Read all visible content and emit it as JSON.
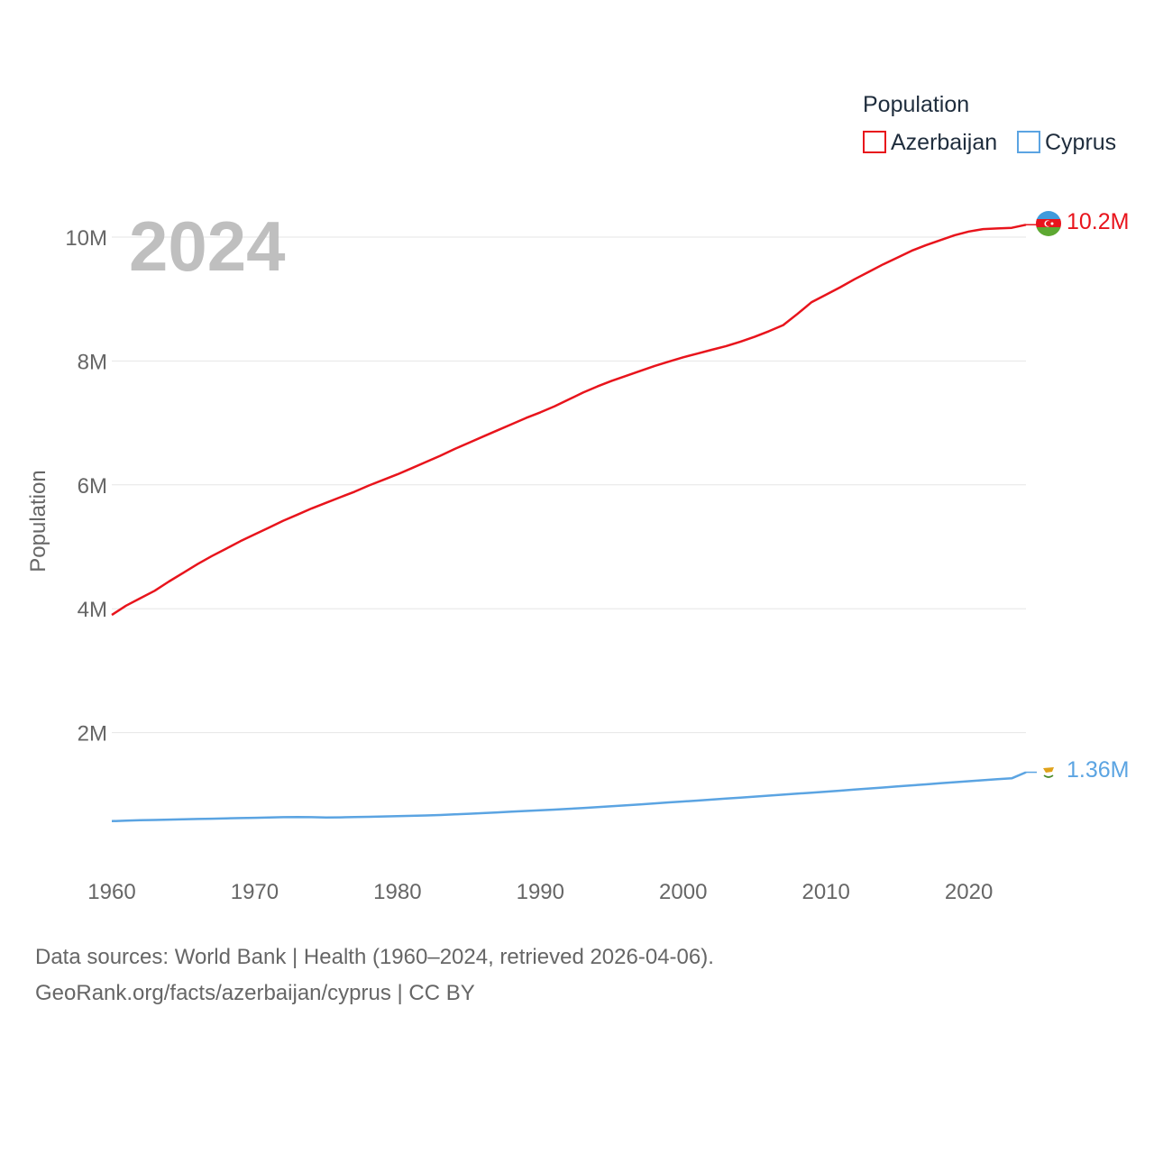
{
  "chart_data": {
    "type": "line",
    "year_label": "2024",
    "ylabel": "Population",
    "legend_title": "Population",
    "xlim": [
      1960,
      2024
    ],
    "ylim": [
      0,
      10500000
    ],
    "x_ticks": [
      {
        "value": 1960,
        "label": "1960"
      },
      {
        "value": 1970,
        "label": "1970"
      },
      {
        "value": 1980,
        "label": "1980"
      },
      {
        "value": 1990,
        "label": "1990"
      },
      {
        "value": 2000,
        "label": "2000"
      },
      {
        "value": 2010,
        "label": "2010"
      },
      {
        "value": 2020,
        "label": "2020"
      }
    ],
    "y_ticks": [
      {
        "value": 2000000,
        "label": "2M"
      },
      {
        "value": 4000000,
        "label": "4M"
      },
      {
        "value": 6000000,
        "label": "6M"
      },
      {
        "value": 8000000,
        "label": "8M"
      },
      {
        "value": 10000000,
        "label": "10M"
      }
    ],
    "x": [
      1960,
      1961,
      1962,
      1963,
      1964,
      1965,
      1966,
      1967,
      1968,
      1969,
      1970,
      1971,
      1972,
      1973,
      1974,
      1975,
      1976,
      1977,
      1978,
      1979,
      1980,
      1981,
      1982,
      1983,
      1984,
      1985,
      1986,
      1987,
      1988,
      1989,
      1990,
      1991,
      1992,
      1993,
      1994,
      1995,
      1996,
      1997,
      1998,
      1999,
      2000,
      2001,
      2002,
      2003,
      2004,
      2005,
      2006,
      2007,
      2008,
      2009,
      2010,
      2011,
      2012,
      2013,
      2014,
      2015,
      2016,
      2017,
      2018,
      2019,
      2020,
      2021,
      2022,
      2023,
      2024
    ],
    "series": [
      {
        "name": "Azerbaijan",
        "color": "#e8141c",
        "end_label": "10.2M",
        "values": [
          3900000,
          4050000,
          4170000,
          4290000,
          4440000,
          4580000,
          4720000,
          4850000,
          4970000,
          5090000,
          5200000,
          5310000,
          5420000,
          5520000,
          5620000,
          5710000,
          5800000,
          5890000,
          5990000,
          6080000,
          6170000,
          6270000,
          6370000,
          6470000,
          6580000,
          6680000,
          6780000,
          6880000,
          6980000,
          7080000,
          7170000,
          7270000,
          7380000,
          7490000,
          7590000,
          7680000,
          7760000,
          7840000,
          7920000,
          7990000,
          8060000,
          8120000,
          8180000,
          8240000,
          8310000,
          8390000,
          8480000,
          8580000,
          8760000,
          8950000,
          9070000,
          9190000,
          9320000,
          9440000,
          9560000,
          9670000,
          9780000,
          9870000,
          9950000,
          10030000,
          10090000,
          10130000,
          10140000,
          10150000,
          10200000
        ]
      },
      {
        "name": "Cyprus",
        "color": "#5ba4e2",
        "end_label": "1.36M",
        "values": [
          570000,
          578000,
          585000,
          590000,
          595000,
          600000,
          605000,
          610000,
          615000,
          620000,
          625000,
          630000,
          635000,
          638000,
          634000,
          630000,
          632000,
          636000,
          641000,
          646000,
          651000,
          656000,
          662000,
          670000,
          680000,
          690000,
          700000,
          712000,
          723000,
          735000,
          746000,
          757000,
          770000,
          783000,
          797000,
          812000,
          827000,
          842000,
          858000,
          873000,
          888000,
          903000,
          919000,
          935000,
          951000,
          967000,
          983000,
          999000,
          1015000,
          1031000,
          1047000,
          1063000,
          1080000,
          1097000,
          1114000,
          1131000,
          1148000,
          1165000,
          1182000,
          1199000,
          1215000,
          1231000,
          1247000,
          1262000,
          1360000
        ]
      }
    ],
    "footer": {
      "source": "Data sources: World Bank | Health (1960–2024, retrieved 2026-04-06).",
      "link": "GeoRank.org/facts/azerbaijan/cyprus | CC BY"
    }
  }
}
